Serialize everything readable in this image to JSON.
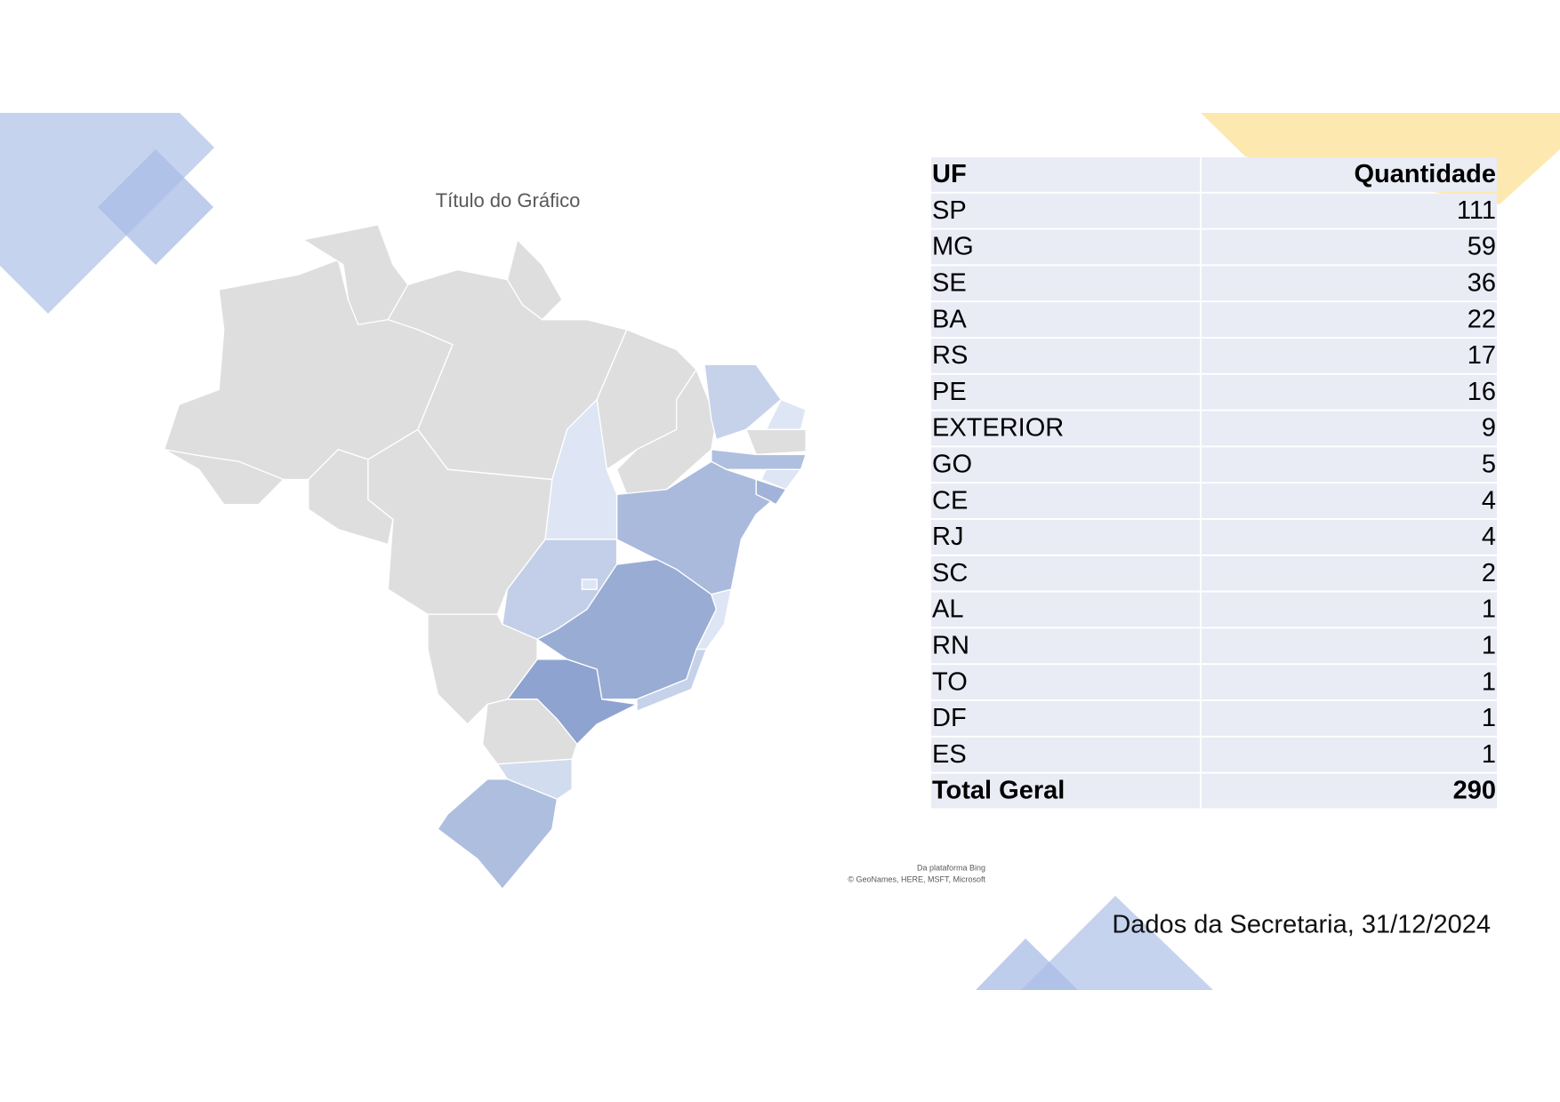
{
  "map": {
    "title": "Título do Gráfico",
    "attribution": [
      "Da plataforma Bing",
      "© GeoNames, HERE, MSFT, Microsoft"
    ]
  },
  "table": {
    "header": [
      "UF",
      "Quantidade"
    ],
    "rows": [
      [
        "SP",
        111
      ],
      [
        "MG",
        59
      ],
      [
        "SE",
        36
      ],
      [
        "BA",
        22
      ],
      [
        "RS",
        17
      ],
      [
        "PE",
        16
      ],
      [
        "EXTERIOR",
        9
      ],
      [
        "GO",
        5
      ],
      [
        "CE",
        4
      ],
      [
        "RJ",
        4
      ],
      [
        "SC",
        2
      ],
      [
        "AL",
        1
      ],
      [
        "RN",
        1
      ],
      [
        "TO",
        1
      ],
      [
        "DF",
        1
      ],
      [
        "ES",
        1
      ]
    ],
    "total": [
      "Total Geral",
      290
    ]
  },
  "footer": "Dados da Secretaria, 31/12/2024"
}
